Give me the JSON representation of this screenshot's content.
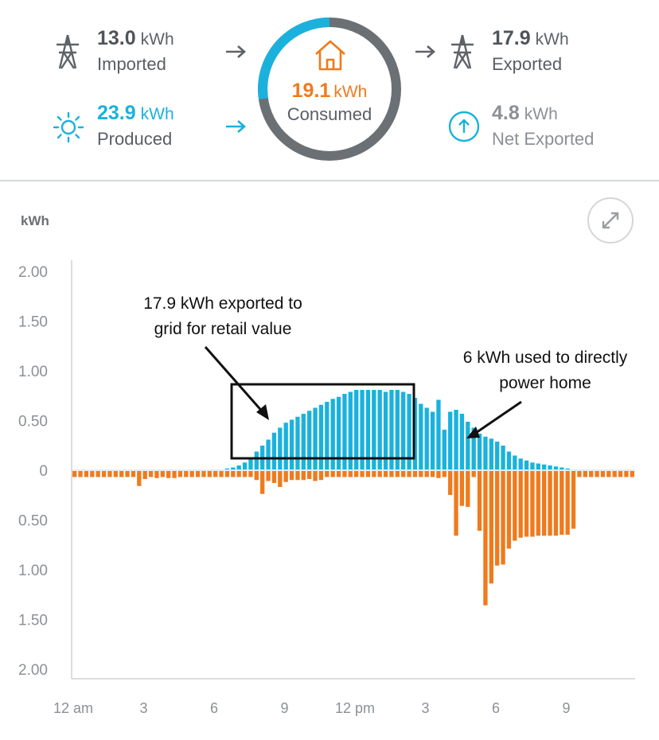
{
  "summary": {
    "imported": {
      "value": "13.0",
      "unit": "kWh",
      "label": "Imported",
      "icon": "transmission-tower-icon"
    },
    "exported": {
      "value": "17.9",
      "unit": "kWh",
      "label": "Exported",
      "icon": "transmission-tower-icon"
    },
    "produced": {
      "value": "23.9",
      "unit": "kWh",
      "label": "Produced",
      "icon": "sun-icon"
    },
    "net_exported": {
      "value": "4.8",
      "unit": "kWh",
      "label": "Net Exported",
      "icon": "arrow-up-circle-icon"
    },
    "consumed": {
      "value": "19.1",
      "unit": "kWh",
      "label": "Consumed",
      "icon": "house-icon"
    }
  },
  "colors": {
    "solar": "#1ab2dd",
    "grid": "#f07a1c",
    "ring_gray": "#6b7075",
    "text": "#4f545a",
    "muted": "#8c9096"
  },
  "chart_controls": {
    "expand_icon": "expand-arrows-icon"
  },
  "annotations": {
    "export_line1": "17.9 kWh exported to",
    "export_line2": "grid for retail value",
    "home_line1": "6 kWh used to directly",
    "home_line2": "power home"
  },
  "chart_data": {
    "type": "bar",
    "ylabel": "kWh",
    "ylim": [
      -2.0,
      2.0
    ],
    "y_ticks": [
      "2.00",
      "1.50",
      "1.00",
      "0.50",
      "0",
      "0.50",
      "1.00",
      "1.50",
      "2.00"
    ],
    "x_ticks": [
      "12 am",
      "3",
      "6",
      "9",
      "12 pm",
      "3",
      "6",
      "9"
    ],
    "x_range_hours": [
      0,
      24
    ],
    "series": [
      {
        "values": [
          0,
          0,
          0,
          0,
          0,
          0,
          0,
          0,
          0,
          0,
          0,
          0,
          0,
          0,
          0,
          0,
          0,
          0,
          0,
          0,
          0,
          0,
          0,
          0,
          0,
          0,
          0.01,
          0.02,
          0.04,
          0.07,
          0.11,
          0.18,
          0.24,
          0.3,
          0.37,
          0.42,
          0.47,
          0.5,
          0.53,
          0.56,
          0.59,
          0.62,
          0.65,
          0.68,
          0.71,
          0.73,
          0.76,
          0.78,
          0.8,
          0.8,
          0.8,
          0.8,
          0.8,
          0.78,
          0.8,
          0.8,
          0.78,
          0.76,
          0.72,
          0.66,
          0.62,
          0.58,
          0.7,
          0.4,
          0.58,
          0.6,
          0.56,
          0.48,
          0.42,
          0.36,
          0.33,
          0.31,
          0.28,
          0.24,
          0.18,
          0.14,
          0.11,
          0.09,
          0.07,
          0.06,
          0.05,
          0.04,
          0.03,
          0.02,
          0.01,
          0,
          0,
          0,
          0,
          0,
          0,
          0,
          0,
          0,
          0,
          0
        ]
      },
      {
        "values": [
          -0.06,
          -0.06,
          -0.06,
          -0.06,
          -0.06,
          -0.06,
          -0.06,
          -0.06,
          -0.06,
          -0.06,
          -0.06,
          -0.15,
          -0.08,
          -0.06,
          -0.07,
          -0.06,
          -0.07,
          -0.07,
          -0.06,
          -0.06,
          -0.06,
          -0.06,
          -0.06,
          -0.06,
          -0.06,
          -0.06,
          -0.06,
          -0.06,
          -0.06,
          -0.06,
          -0.06,
          -0.09,
          -0.23,
          -0.1,
          -0.12,
          -0.16,
          -0.11,
          -0.09,
          -0.09,
          -0.09,
          -0.08,
          -0.1,
          -0.09,
          -0.06,
          -0.06,
          -0.06,
          -0.06,
          -0.06,
          -0.06,
          -0.06,
          -0.06,
          -0.06,
          -0.06,
          -0.06,
          -0.06,
          -0.06,
          -0.06,
          -0.06,
          -0.06,
          -0.06,
          -0.06,
          -0.06,
          -0.07,
          -0.06,
          -0.24,
          -0.65,
          -0.35,
          -0.36,
          -0.06,
          -0.6,
          -1.35,
          -1.13,
          -0.95,
          -0.94,
          -0.78,
          -0.7,
          -0.67,
          -0.66,
          -0.66,
          -0.65,
          -0.65,
          -0.65,
          -0.65,
          -0.64,
          -0.64,
          -0.58,
          -0.06,
          -0.06,
          -0.06,
          -0.06,
          -0.06,
          -0.06,
          -0.06,
          -0.06,
          -0.06,
          -0.06
        ]
      }
    ]
  }
}
